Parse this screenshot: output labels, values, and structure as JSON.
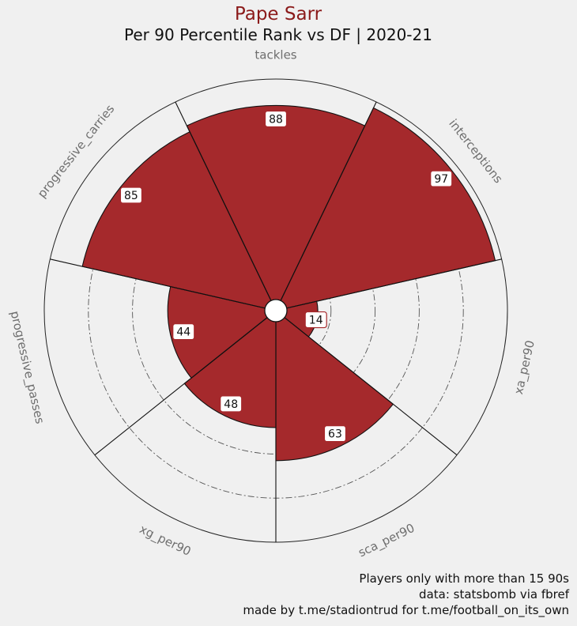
{
  "title": "Pape Sarr",
  "subtitle": "Per 90 Percentile Rank vs DF | 2020-21",
  "footnote": [
    "Players only with more than 15 90s",
    "data: statsbomb via fbref",
    "made by t.me/stadiontrud for t.me/football_on_its_own"
  ],
  "colors": {
    "bar": "#a5292c",
    "bar_edge": "#111111",
    "label_box_edge": "#a5292c",
    "background": "#f0f0f0"
  },
  "chart_data": {
    "type": "polar-bar",
    "categories": [
      "tackles",
      "interceptions",
      "xa_per90",
      "sca_per90",
      "xg_per90",
      "progressive_passes",
      "progressive_carries"
    ],
    "values": [
      88,
      97,
      14,
      63,
      48,
      44,
      85
    ],
    "rlim": [
      0,
      100
    ],
    "grid": true
  }
}
